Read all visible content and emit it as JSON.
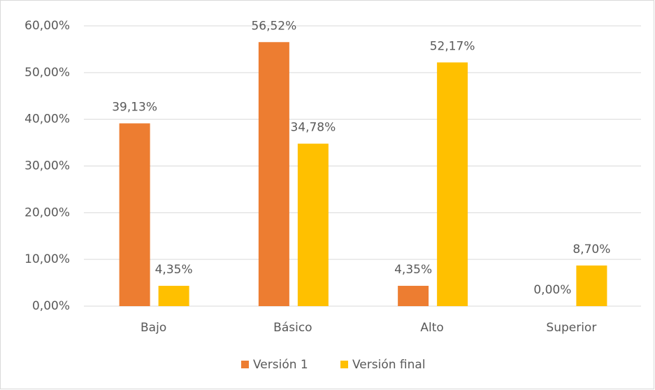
{
  "chart_data": {
    "type": "bar",
    "categories": [
      "Bajo",
      "Básico",
      "Alto",
      "Superior"
    ],
    "series": [
      {
        "name": "Versión 1",
        "color": "#ED7D31",
        "values": [
          39.13,
          56.52,
          4.35,
          0.0
        ],
        "value_labels": [
          "39,13%",
          "56,52%",
          "4,35%",
          "0,00%"
        ]
      },
      {
        "name": "Versión final",
        "color": "#FFC000",
        "values": [
          4.35,
          34.78,
          52.17,
          8.7
        ],
        "value_labels": [
          "4,35%",
          "34,78%",
          "52,17%",
          "8,70%"
        ]
      }
    ],
    "ylim": [
      0,
      60
    ],
    "yticks": [
      {
        "value": 0,
        "label": "0,00%"
      },
      {
        "value": 10,
        "label": "10,00%"
      },
      {
        "value": 20,
        "label": "20,00%"
      },
      {
        "value": 30,
        "label": "30,00%"
      },
      {
        "value": 40,
        "label": "40,00%"
      },
      {
        "value": 50,
        "label": "50,00%"
      },
      {
        "value": 60,
        "label": "60,00%"
      }
    ],
    "grid": true,
    "legend": "bottom"
  }
}
